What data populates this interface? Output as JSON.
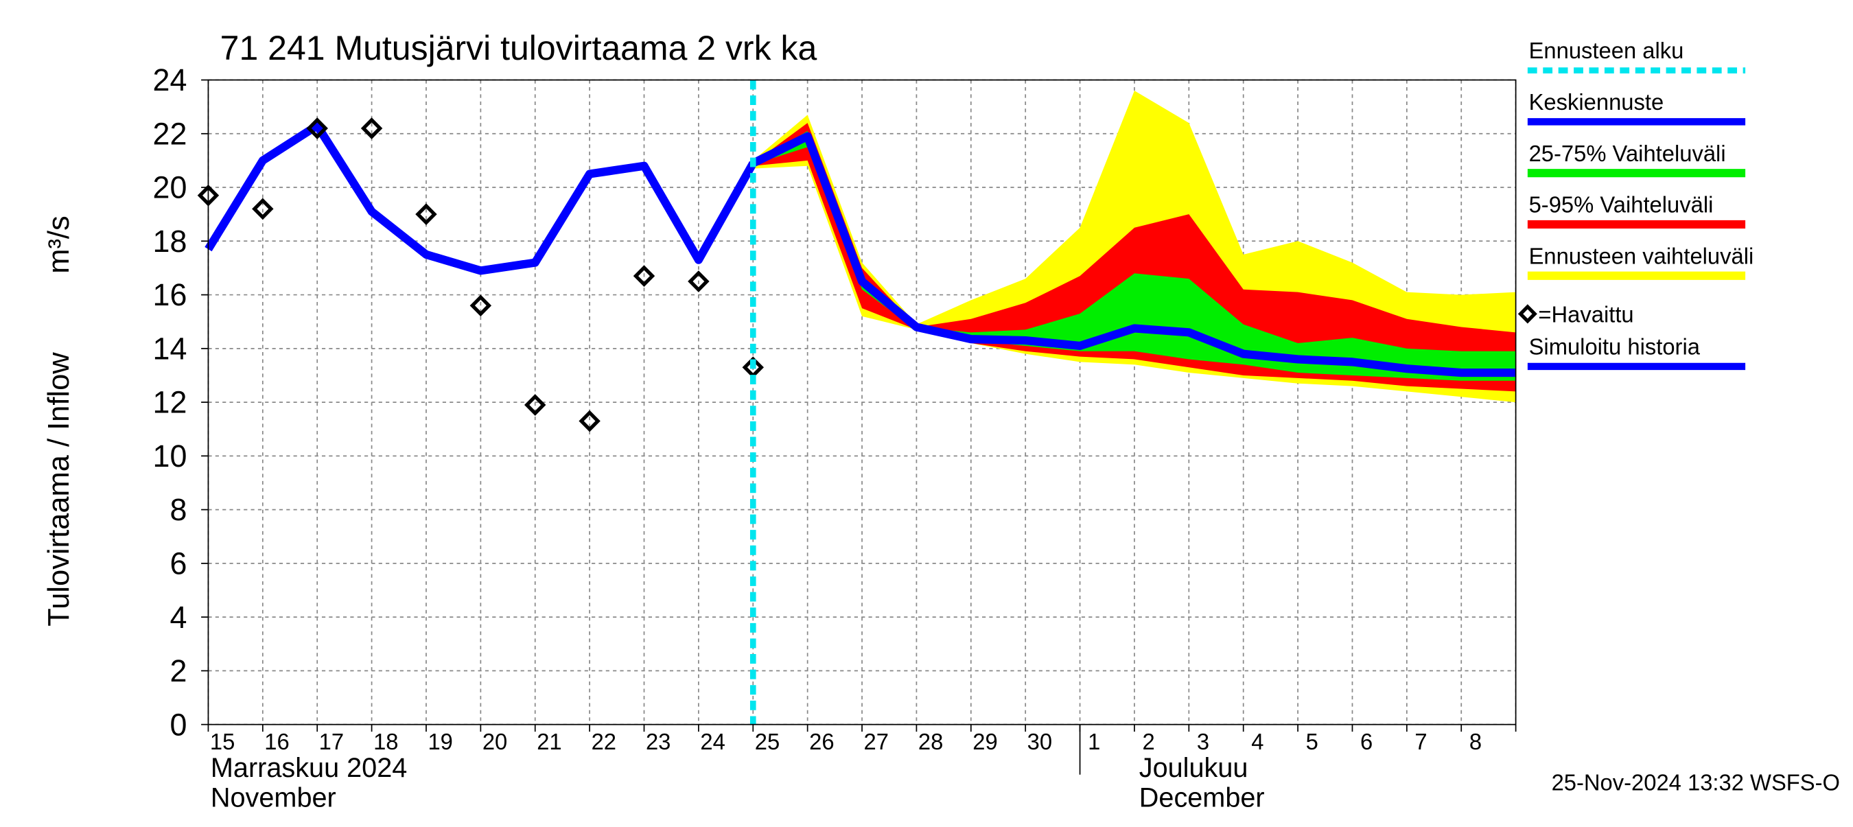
{
  "chart_data": {
    "type": "forecast",
    "title": "71 241 Mutusjärvi tulovirtaama 2 vrk ka",
    "y_label": "Tulovirtaama / Inflow",
    "y_unit": "m³/s",
    "categories": [
      "15",
      "16",
      "17",
      "18",
      "19",
      "20",
      "21",
      "22",
      "23",
      "24",
      "25",
      "26",
      "27",
      "28",
      "29",
      "30",
      "1",
      "2",
      "3",
      "4",
      "5",
      "6",
      "7",
      "8",
      null
    ],
    "month_labels": [
      {
        "index": 0,
        "lines": [
          "Marraskuu 2024",
          "November"
        ]
      },
      {
        "index": 16,
        "lines": [
          "Joulukuu",
          "December"
        ]
      }
    ],
    "ylim": [
      0,
      24
    ],
    "yticks": [
      0,
      2,
      4,
      6,
      8,
      10,
      12,
      14,
      16,
      18,
      20,
      22,
      24
    ],
    "grid": true,
    "timestamp": "25-Nov-2024 13:32 WSFS-O",
    "series": [
      {
        "name": "Ennusteen alku",
        "style": "vline",
        "color": "#00e5ee",
        "at": 10
      },
      {
        "name": "Keskiennuste",
        "style": "line",
        "color": "#0000ff",
        "values": [
          null,
          null,
          null,
          null,
          null,
          null,
          null,
          null,
          null,
          null,
          20.9,
          21.9,
          16.5,
          14.8,
          14.35,
          14.3,
          14.1,
          14.75,
          14.6,
          13.8,
          13.6,
          13.5,
          13.25,
          13.1,
          13.1
        ]
      },
      {
        "name": "25-75% Vaihteluväli",
        "style": "band",
        "color": "#00ee00",
        "low": [
          null,
          null,
          null,
          null,
          null,
          null,
          null,
          null,
          null,
          null,
          20.85,
          21.5,
          16.2,
          14.7,
          14.3,
          14.1,
          13.9,
          13.9,
          13.6,
          13.4,
          13.1,
          13.0,
          12.9,
          12.8,
          12.8
        ],
        "high": [
          null,
          null,
          null,
          null,
          null,
          null,
          null,
          null,
          null,
          null,
          20.9,
          22.1,
          16.7,
          14.8,
          14.6,
          14.7,
          15.3,
          16.8,
          16.6,
          14.9,
          14.2,
          14.4,
          14.0,
          13.9,
          13.9
        ]
      },
      {
        "name": "5-95% Vaihteluväli",
        "style": "band",
        "color": "#ff0000",
        "low": [
          null,
          null,
          null,
          null,
          null,
          null,
          null,
          null,
          null,
          null,
          20.8,
          21.0,
          15.5,
          14.7,
          14.2,
          13.9,
          13.7,
          13.6,
          13.3,
          13.0,
          12.9,
          12.8,
          12.6,
          12.5,
          12.4
        ],
        "high": [
          null,
          null,
          null,
          null,
          null,
          null,
          null,
          null,
          null,
          null,
          20.9,
          22.4,
          17.0,
          14.8,
          15.1,
          15.7,
          16.7,
          18.5,
          19.0,
          16.2,
          16.1,
          15.8,
          15.1,
          14.8,
          14.6
        ]
      },
      {
        "name": "Ennusteen vaihteluväli",
        "style": "band",
        "color": "#ffff00",
        "low": [
          null,
          null,
          null,
          null,
          null,
          null,
          null,
          null,
          null,
          null,
          20.7,
          20.8,
          15.2,
          14.7,
          14.2,
          13.8,
          13.5,
          13.4,
          13.1,
          12.9,
          12.7,
          12.6,
          12.4,
          12.2,
          12.0
        ],
        "high": [
          null,
          null,
          null,
          null,
          null,
          null,
          null,
          null,
          null,
          null,
          21.0,
          22.7,
          17.2,
          14.9,
          15.8,
          16.6,
          18.5,
          23.6,
          22.4,
          17.5,
          18.0,
          17.2,
          16.1,
          16.0,
          16.1
        ]
      },
      {
        "name": "=Havaittu",
        "style": "marker",
        "color": "#000000",
        "values": [
          19.7,
          19.2,
          22.2,
          22.2,
          19.0,
          15.6,
          11.9,
          11.3,
          16.7,
          16.5,
          13.3,
          null,
          null,
          null,
          null,
          null,
          null,
          null,
          null,
          null,
          null,
          null,
          null,
          null,
          null
        ]
      },
      {
        "name": "Simuloitu historia",
        "style": "line",
        "color": "#0000ff",
        "values": [
          17.7,
          21.0,
          22.3,
          19.1,
          17.5,
          16.9,
          17.2,
          20.5,
          20.8,
          17.3,
          20.9,
          null,
          null,
          null,
          null,
          null,
          null,
          null,
          null,
          null,
          null,
          null,
          null,
          null,
          null
        ]
      }
    ]
  }
}
